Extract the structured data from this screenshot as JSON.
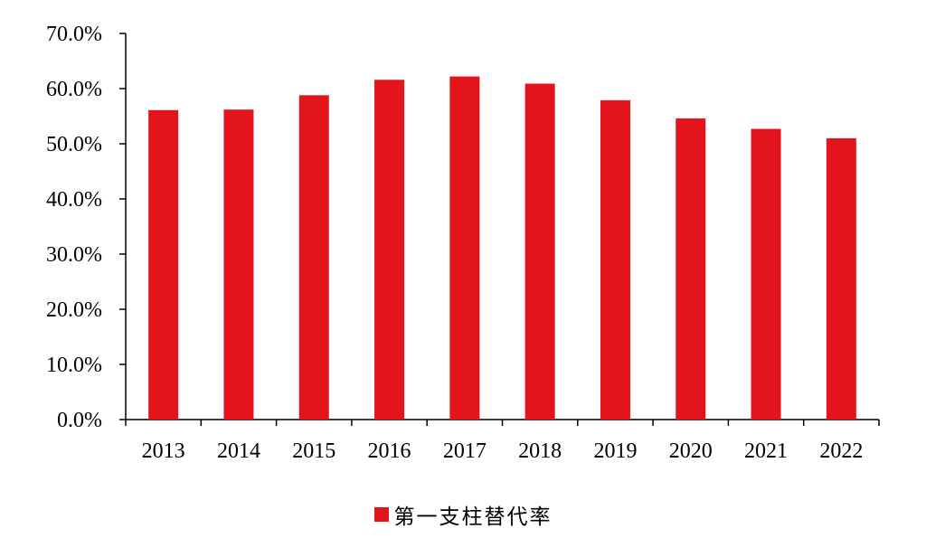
{
  "chart_data": {
    "type": "bar",
    "categories": [
      "2013",
      "2014",
      "2015",
      "2016",
      "2017",
      "2018",
      "2019",
      "2020",
      "2021",
      "2022"
    ],
    "series": [
      {
        "name": "第一支柱替代率",
        "values": [
          56.1,
          56.2,
          58.8,
          61.6,
          62.2,
          60.9,
          57.9,
          54.6,
          52.7,
          51.0
        ],
        "color": "#e3141c"
      }
    ],
    "title": "",
    "xlabel": "",
    "ylabel": "",
    "ylim": [
      0,
      70
    ],
    "yticks": [
      0,
      10,
      20,
      30,
      40,
      50,
      60,
      70
    ],
    "ytick_labels": [
      "0.0%",
      "10.0%",
      "20.0%",
      "30.0%",
      "40.0%",
      "50.0%",
      "60.0%",
      "70.0%"
    ],
    "grid": false,
    "legend": "bottom-center"
  }
}
